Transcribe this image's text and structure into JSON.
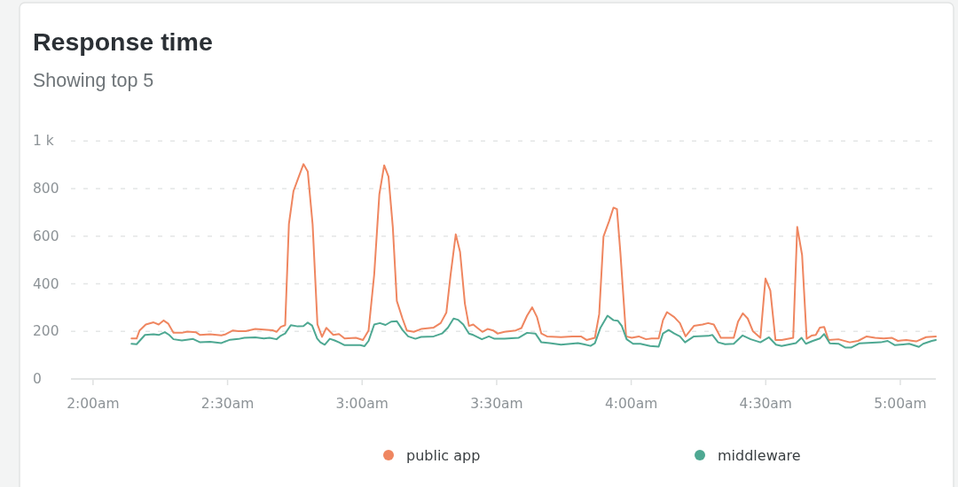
{
  "chart_data": {
    "type": "line",
    "title": "Response time",
    "subtitle": "Showing top 5",
    "xlim": [
      1.918,
      5.132
    ],
    "xticks": [
      {
        "value": 2,
        "label": "2:00am"
      },
      {
        "value": 2.5,
        "label": "2:30am"
      },
      {
        "value": 3,
        "label": "3:00am"
      },
      {
        "value": 3.5,
        "label": "3:30am"
      },
      {
        "value": 4,
        "label": "4:00am"
      },
      {
        "value": 4.5,
        "label": "4:30am"
      },
      {
        "value": 5,
        "label": "5:00am"
      }
    ],
    "ylim": [
      0,
      1000
    ],
    "yticks": [
      0,
      200,
      400,
      600,
      800,
      {
        "value": 1000,
        "label": "1 k"
      }
    ],
    "grid": "y",
    "legend": "bottom",
    "series": [
      {
        "name": "public app",
        "color": "#ef8660",
        "x": [
          2.143,
          2.162,
          2.173,
          2.196,
          2.225,
          2.244,
          2.262,
          2.28,
          2.299,
          2.33,
          2.351,
          2.383,
          2.398,
          2.435,
          2.477,
          2.493,
          2.52,
          2.54,
          2.567,
          2.603,
          2.646,
          2.667,
          2.682,
          2.698,
          2.714,
          2.728,
          2.745,
          2.763,
          2.782,
          2.798,
          2.816,
          2.834,
          2.851,
          2.867,
          2.893,
          2.914,
          2.935,
          2.977,
          3.003,
          3.024,
          3.045,
          3.064,
          3.082,
          3.098,
          3.114,
          3.129,
          3.15,
          3.166,
          3.192,
          3.219,
          3.266,
          3.292,
          3.313,
          3.329,
          3.348,
          3.364,
          3.382,
          3.397,
          3.413,
          3.429,
          3.447,
          3.466,
          3.487,
          3.503,
          3.529,
          3.571,
          3.592,
          3.613,
          3.632,
          3.65,
          3.666,
          3.687,
          3.739,
          3.781,
          3.813,
          3.834,
          3.865,
          3.881,
          3.897,
          3.918,
          3.934,
          3.947,
          3.96,
          3.981,
          4.002,
          4.028,
          4.055,
          4.076,
          4.102,
          4.118,
          4.133,
          4.16,
          4.181,
          4.202,
          4.233,
          4.265,
          4.286,
          4.307,
          4.333,
          4.381,
          4.397,
          4.415,
          4.433,
          4.452,
          4.48,
          4.499,
          4.517,
          4.536,
          4.559,
          4.602,
          4.617,
          4.635,
          4.652,
          4.67,
          4.686,
          4.701,
          4.717,
          4.733,
          4.77,
          4.812,
          4.843,
          4.875,
          4.906,
          4.938,
          4.969,
          4.991,
          5.022,
          5.059,
          5.096,
          5.132
        ],
        "values": [
          170,
          170,
          204,
          229,
          238,
          229,
          246,
          232,
          194,
          194,
          199,
          196,
          185,
          188,
          183,
          188,
          204,
          201,
          201,
          210,
          207,
          205,
          198,
          219,
          226,
          652,
          790,
          845,
          903,
          872,
          650,
          229,
          177,
          215,
          185,
          189,
          170,
          173,
          164,
          204,
          440,
          776,
          898,
          851,
          639,
          328,
          254,
          204,
          198,
          210,
          216,
          235,
          279,
          440,
          608,
          534,
          316,
          223,
          229,
          214,
          198,
          210,
          204,
          191,
          198,
          204,
          214,
          266,
          301,
          260,
          191,
          179,
          176,
          179,
          179,
          164,
          173,
          272,
          599,
          664,
          720,
          714,
          527,
          179,
          173,
          179,
          167,
          170,
          170,
          247,
          281,
          260,
          235,
          179,
          223,
          229,
          235,
          229,
          173,
          173,
          241,
          276,
          254,
          201,
          173,
          422,
          372,
          164,
          164,
          173,
          639,
          521,
          169,
          182,
          185,
          216,
          219,
          164,
          167,
          154,
          160,
          179,
          173,
          170,
          173,
          160,
          164,
          158,
          176,
          179
        ]
      },
      {
        "name": "middleware",
        "color": "#4ea892",
        "x": [
          2.143,
          2.162,
          2.193,
          2.225,
          2.244,
          2.267,
          2.283,
          2.299,
          2.33,
          2.372,
          2.398,
          2.435,
          2.477,
          2.509,
          2.54,
          2.562,
          2.603,
          2.635,
          2.656,
          2.682,
          2.698,
          2.714,
          2.735,
          2.761,
          2.782,
          2.798,
          2.814,
          2.833,
          2.845,
          2.861,
          2.88,
          2.898,
          2.914,
          2.935,
          2.993,
          3.009,
          3.024,
          3.045,
          3.066,
          3.087,
          3.108,
          3.129,
          3.15,
          3.171,
          3.198,
          3.219,
          3.266,
          3.297,
          3.319,
          3.34,
          3.356,
          3.376,
          3.397,
          3.413,
          3.445,
          3.471,
          3.492,
          3.529,
          3.581,
          3.613,
          3.644,
          3.666,
          3.697,
          3.739,
          3.802,
          3.823,
          3.849,
          3.865,
          3.886,
          3.912,
          3.934,
          3.95,
          3.965,
          3.983,
          4.007,
          4.034,
          4.07,
          4.102,
          4.118,
          4.139,
          4.16,
          4.181,
          4.2,
          4.233,
          4.286,
          4.302,
          4.323,
          4.349,
          4.381,
          4.414,
          4.444,
          4.48,
          4.512,
          4.538,
          4.559,
          4.612,
          4.633,
          4.649,
          4.675,
          4.701,
          4.717,
          4.738,
          4.77,
          4.796,
          4.817,
          4.849,
          4.927,
          4.953,
          4.98,
          5.033,
          5.069,
          5.085,
          5.117,
          5.132
        ],
        "values": [
          148,
          146,
          185,
          188,
          185,
          197,
          185,
          167,
          162,
          168,
          154,
          156,
          151,
          165,
          168,
          173,
          175,
          170,
          173,
          167,
          182,
          191,
          226,
          221,
          222,
          237,
          225,
          170,
          154,
          144,
          169,
          162,
          154,
          142,
          142,
          138,
          160,
          229,
          235,
          227,
          241,
          243,
          206,
          179,
          169,
          177,
          179,
          191,
          216,
          254,
          249,
          229,
          191,
          185,
          167,
          179,
          169,
          169,
          173,
          194,
          191,
          154,
          151,
          144,
          151,
          146,
          139,
          150,
          216,
          266,
          247,
          245,
          223,
          167,
          148,
          148,
          139,
          136,
          191,
          206,
          191,
          179,
          154,
          179,
          181,
          185,
          154,
          146,
          148,
          183,
          167,
          154,
          175,
          144,
          139,
          151,
          173,
          148,
          160,
          170,
          189,
          150,
          148,
          132,
          132,
          150,
          154,
          160,
          142,
          148,
          135,
          148,
          160,
          164
        ]
      }
    ]
  }
}
